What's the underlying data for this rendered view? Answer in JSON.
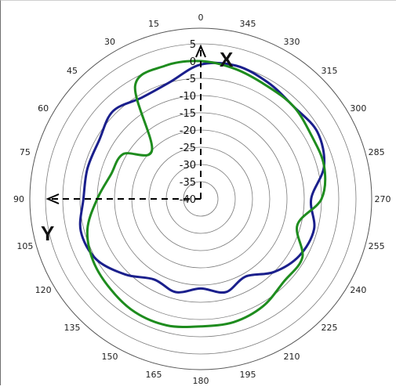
{
  "chart_data": {
    "type": "polar",
    "title": "",
    "angle_labels": [
      "0",
      "15",
      "30",
      "45",
      "60",
      "75",
      "90",
      "105",
      "120",
      "135",
      "150",
      "165",
      "180",
      "195",
      "210",
      "225",
      "240",
      "255",
      "270",
      "285",
      "300",
      "315",
      "330",
      "345"
    ],
    "radial_labels": [
      "5",
      "0",
      "-5",
      "-10",
      "-15",
      "-20",
      "-25",
      "-30",
      "-35",
      "-40"
    ],
    "r_range": [
      -40,
      5
    ],
    "direction": "counter-clockwise",
    "zero_location": "top",
    "axis_letters": {
      "x": "X",
      "y": "Y"
    },
    "series": [
      {
        "color": "#1a1f8c",
        "theta": [
          0,
          15,
          30,
          45,
          60,
          75,
          90,
          105,
          120,
          135,
          150,
          165,
          180,
          195,
          210,
          225,
          240,
          255,
          270,
          285,
          300,
          315,
          330,
          345
        ],
        "r": [
          -1,
          -5,
          -6,
          -4,
          -6,
          -6,
          -6,
          -4,
          -5,
          -9,
          -13,
          -12,
          -14,
          -12,
          -14,
          -10,
          -7,
          -6,
          -8,
          -3,
          -1,
          -2,
          -1,
          0
        ]
      },
      {
        "color": "#1e8c1e",
        "theta": [
          0,
          15,
          30,
          45,
          60,
          75,
          90,
          105,
          120,
          135,
          150,
          165,
          180,
          195,
          210,
          225,
          240,
          255,
          270,
          285,
          300,
          315,
          330,
          345
        ],
        "r": [
          0,
          0,
          -2,
          -20,
          -14,
          -13,
          -10,
          -6,
          -4,
          -3,
          -2,
          -2,
          -3,
          -3,
          -4,
          -6,
          -6,
          -11,
          -5,
          -3,
          -3,
          -2,
          -2,
          -1
        ]
      }
    ]
  }
}
